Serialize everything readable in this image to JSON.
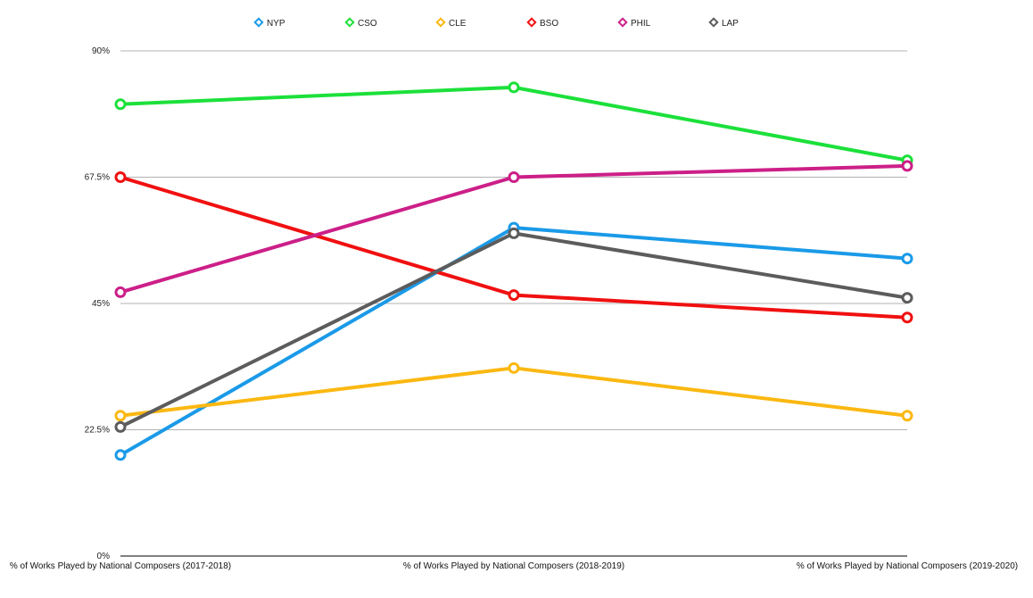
{
  "chart_data": {
    "type": "line",
    "title": "",
    "xlabel": "",
    "ylabel": "",
    "categories": [
      "% of Works Played by National Composers (2017-2018)",
      "% of Works Played by National Composers (2018-2019)",
      "% of Works Played by National Composers (2019-2020)"
    ],
    "ylim": [
      0,
      90
    ],
    "y_ticks": [
      0,
      22.5,
      45,
      67.5,
      90
    ],
    "y_tick_labels": [
      "0%",
      "22.5%",
      "45%",
      "67.5%",
      "90%"
    ],
    "grid": true,
    "legend_position": "top-center",
    "series": [
      {
        "name": "NYP",
        "color": "#1a9ae8",
        "values": [
          18,
          58.5,
          53
        ]
      },
      {
        "name": "CSO",
        "color": "#1ce03a",
        "values": [
          80.5,
          83.5,
          70.5
        ]
      },
      {
        "name": "CLE",
        "color": "#fbb812",
        "values": [
          25,
          33.5,
          25
        ]
      },
      {
        "name": "BSO",
        "color": "#f01010",
        "values": [
          67.5,
          46.5,
          42.5
        ]
      },
      {
        "name": "PHIL",
        "color": "#cc1f88",
        "values": [
          47,
          67.5,
          69.5
        ]
      },
      {
        "name": "LAP",
        "color": "#5c5c5c",
        "values": [
          23,
          57.5,
          46
        ]
      }
    ]
  }
}
